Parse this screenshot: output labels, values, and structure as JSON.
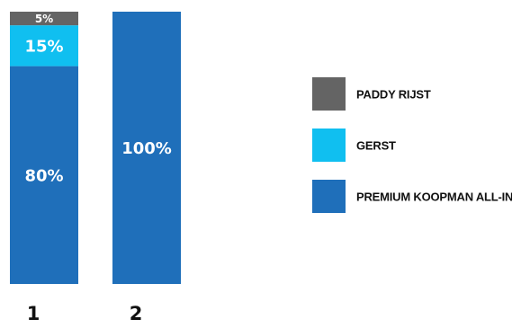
{
  "chart_data": {
    "type": "bar",
    "stacked": true,
    "categories": [
      "1",
      "2"
    ],
    "series": [
      {
        "name": "PREMIUM KOOPMAN ALL-IN-ONE",
        "color": "#1f6fba",
        "values": [
          80,
          100
        ],
        "labels": [
          "80%",
          "100%"
        ]
      },
      {
        "name": "GERST",
        "color": "#10bff0",
        "values": [
          15,
          0
        ],
        "labels": [
          "15%",
          ""
        ]
      },
      {
        "name": "PADDY RIJST",
        "color": "#646464",
        "values": [
          5,
          0
        ],
        "labels": [
          "5%",
          ""
        ]
      }
    ],
    "legend_order": [
      "PADDY RIJST",
      "GERST",
      "PREMIUM KOOPMAN ALL-IN-ONE"
    ],
    "legend_position": "right",
    "ylim": [
      0,
      100
    ],
    "grid": false
  }
}
